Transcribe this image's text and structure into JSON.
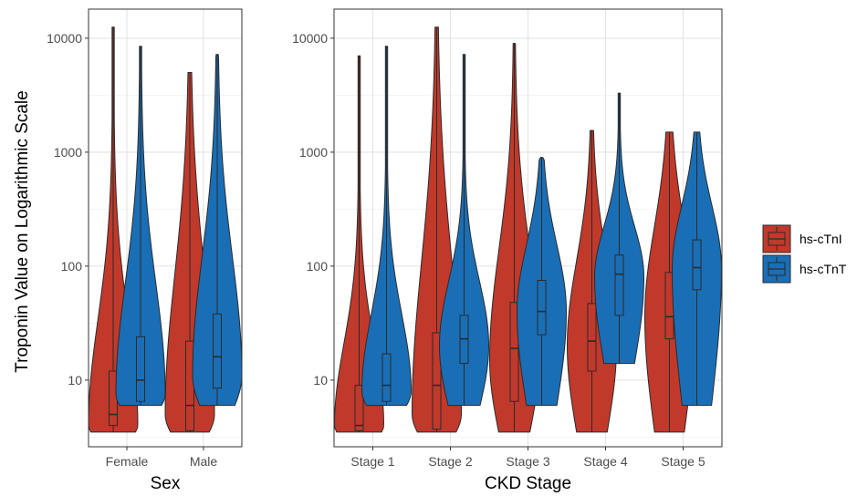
{
  "chart_data": {
    "type": "violin",
    "ylabel": "Troponin Value on Logarithmic Scale",
    "y_scale": "log10",
    "ylim": [
      2.6,
      18000
    ],
    "y_ticks": [
      10,
      100,
      1000,
      10000
    ],
    "y_tick_labels": [
      "10",
      "100",
      "1000",
      "10000"
    ],
    "grid": true,
    "legend": {
      "position": "right",
      "entries": [
        {
          "label": "hs-cTnI",
          "color": "#c0392b"
        },
        {
          "label": "hs-cTnT",
          "color": "#1a6eb5"
        }
      ]
    },
    "panels": [
      {
        "xlabel": "Sex",
        "categories": [
          "Female",
          "Male"
        ],
        "series": [
          {
            "legend_label": "hs-cTnI",
            "stats": [
              {
                "min": 3.5,
                "q1": 4,
                "median": 5,
                "q3": 12,
                "max": 12500,
                "mode": 4
              },
              {
                "min": 3.5,
                "q1": 3.6,
                "median": 6,
                "q3": 22,
                "max": 5000,
                "mode": 5
              }
            ]
          },
          {
            "legend_label": "hs-cTnT",
            "stats": [
              {
                "min": 6,
                "q1": 6.5,
                "median": 10,
                "q3": 24,
                "max": 8500,
                "mode": 7.5
              },
              {
                "min": 6,
                "q1": 8.5,
                "median": 16,
                "q3": 38,
                "max": 7200,
                "mode": 11
              }
            ]
          }
        ]
      },
      {
        "xlabel": "CKD Stage",
        "categories": [
          "Stage 1",
          "Stage 2",
          "Stage 3",
          "Stage 4",
          "Stage 5"
        ],
        "series": [
          {
            "legend_label": "hs-cTnI",
            "stats": [
              {
                "min": 3.5,
                "q1": 3.6,
                "median": 4,
                "q3": 9,
                "max": 7000,
                "mode": 4
              },
              {
                "min": 3.5,
                "q1": 3.7,
                "median": 9,
                "q3": 26,
                "max": 12500,
                "mode": 5
              },
              {
                "min": 3.5,
                "q1": 6.5,
                "median": 19,
                "q3": 48,
                "max": 9000,
                "mode": 15
              },
              {
                "min": 3.5,
                "q1": 12,
                "median": 22,
                "q3": 47,
                "max": 1550,
                "mode": 20
              },
              {
                "min": 3.5,
                "q1": 23,
                "median": 36,
                "q3": 88,
                "max": 1500,
                "mode": 36
              }
            ]
          },
          {
            "legend_label": "hs-cTnT",
            "stats": [
              {
                "min": 6,
                "q1": 6.5,
                "median": 9,
                "q3": 17,
                "max": 8500,
                "mode": 8
              },
              {
                "min": 6,
                "q1": 14,
                "median": 23,
                "q3": 37,
                "max": 7200,
                "mode": 20
              },
              {
                "min": 6,
                "q1": 25,
                "median": 40,
                "q3": 75,
                "max": 900,
                "mode": 40
              },
              {
                "min": 14,
                "q1": 37,
                "median": 85,
                "q3": 125,
                "max": 3300,
                "mode": 80
              },
              {
                "min": 6,
                "q1": 62,
                "median": 97,
                "q3": 170,
                "max": 1500,
                "mode": 95
              }
            ]
          }
        ]
      }
    ]
  }
}
